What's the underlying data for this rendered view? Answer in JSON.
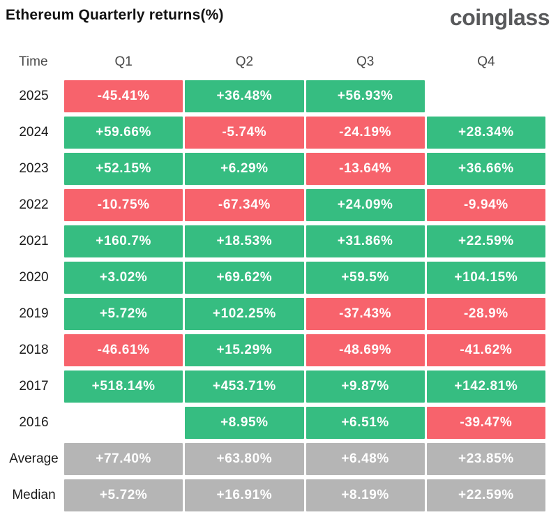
{
  "header": {
    "title": "Ethereum Quarterly returns(%)",
    "logo_text": "coinglass"
  },
  "colors": {
    "positive": "#36bd81",
    "negative": "#f7636c",
    "neutral": "#b5b5b5",
    "title_text": "#111111",
    "logo_text": "#58595b",
    "column_header_text": "#4a4a4a",
    "row_label_text": "#1c1c1c",
    "cell_text": "#ffffff",
    "background": "#ffffff"
  },
  "chart_data": {
    "type": "table",
    "title": "Ethereum Quarterly returns(%)",
    "corner_label": "Time",
    "categories": [
      "Q1",
      "Q2",
      "Q3",
      "Q4"
    ],
    "legend": "none",
    "rows": [
      {
        "label": "2025",
        "cells": [
          {
            "value": "-45.41%",
            "color": "negative"
          },
          {
            "value": "+36.48%",
            "color": "positive"
          },
          {
            "value": "+56.93%",
            "color": "positive"
          },
          null
        ]
      },
      {
        "label": "2024",
        "cells": [
          {
            "value": "+59.66%",
            "color": "positive"
          },
          {
            "value": "-5.74%",
            "color": "negative"
          },
          {
            "value": "-24.19%",
            "color": "negative"
          },
          {
            "value": "+28.34%",
            "color": "positive"
          }
        ]
      },
      {
        "label": "2023",
        "cells": [
          {
            "value": "+52.15%",
            "color": "positive"
          },
          {
            "value": "+6.29%",
            "color": "positive"
          },
          {
            "value": "-13.64%",
            "color": "negative"
          },
          {
            "value": "+36.66%",
            "color": "positive"
          }
        ]
      },
      {
        "label": "2022",
        "cells": [
          {
            "value": "-10.75%",
            "color": "negative"
          },
          {
            "value": "-67.34%",
            "color": "negative"
          },
          {
            "value": "+24.09%",
            "color": "positive"
          },
          {
            "value": "-9.94%",
            "color": "negative"
          }
        ]
      },
      {
        "label": "2021",
        "cells": [
          {
            "value": "+160.7%",
            "color": "positive"
          },
          {
            "value": "+18.53%",
            "color": "positive"
          },
          {
            "value": "+31.86%",
            "color": "positive"
          },
          {
            "value": "+22.59%",
            "color": "positive"
          }
        ]
      },
      {
        "label": "2020",
        "cells": [
          {
            "value": "+3.02%",
            "color": "positive"
          },
          {
            "value": "+69.62%",
            "color": "positive"
          },
          {
            "value": "+59.5%",
            "color": "positive"
          },
          {
            "value": "+104.15%",
            "color": "positive"
          }
        ]
      },
      {
        "label": "2019",
        "cells": [
          {
            "value": "+5.72%",
            "color": "positive"
          },
          {
            "value": "+102.25%",
            "color": "positive"
          },
          {
            "value": "-37.43%",
            "color": "negative"
          },
          {
            "value": "-28.9%",
            "color": "negative"
          }
        ]
      },
      {
        "label": "2018",
        "cells": [
          {
            "value": "-46.61%",
            "color": "negative"
          },
          {
            "value": "+15.29%",
            "color": "positive"
          },
          {
            "value": "-48.69%",
            "color": "negative"
          },
          {
            "value": "-41.62%",
            "color": "negative"
          }
        ]
      },
      {
        "label": "2017",
        "cells": [
          {
            "value": "+518.14%",
            "color": "positive"
          },
          {
            "value": "+453.71%",
            "color": "positive"
          },
          {
            "value": "+9.87%",
            "color": "positive"
          },
          {
            "value": "+142.81%",
            "color": "positive"
          }
        ]
      },
      {
        "label": "2016",
        "cells": [
          null,
          {
            "value": "+8.95%",
            "color": "positive"
          },
          {
            "value": "+6.51%",
            "color": "positive"
          },
          {
            "value": "-39.47%",
            "color": "negative"
          }
        ]
      },
      {
        "label": "Average",
        "cells": [
          {
            "value": "+77.40%",
            "color": "neutral"
          },
          {
            "value": "+63.80%",
            "color": "neutral"
          },
          {
            "value": "+6.48%",
            "color": "neutral"
          },
          {
            "value": "+23.85%",
            "color": "neutral"
          }
        ]
      },
      {
        "label": "Median",
        "cells": [
          {
            "value": "+5.72%",
            "color": "neutral"
          },
          {
            "value": "+16.91%",
            "color": "neutral"
          },
          {
            "value": "+8.19%",
            "color": "neutral"
          },
          {
            "value": "+22.59%",
            "color": "neutral"
          }
        ]
      }
    ]
  }
}
